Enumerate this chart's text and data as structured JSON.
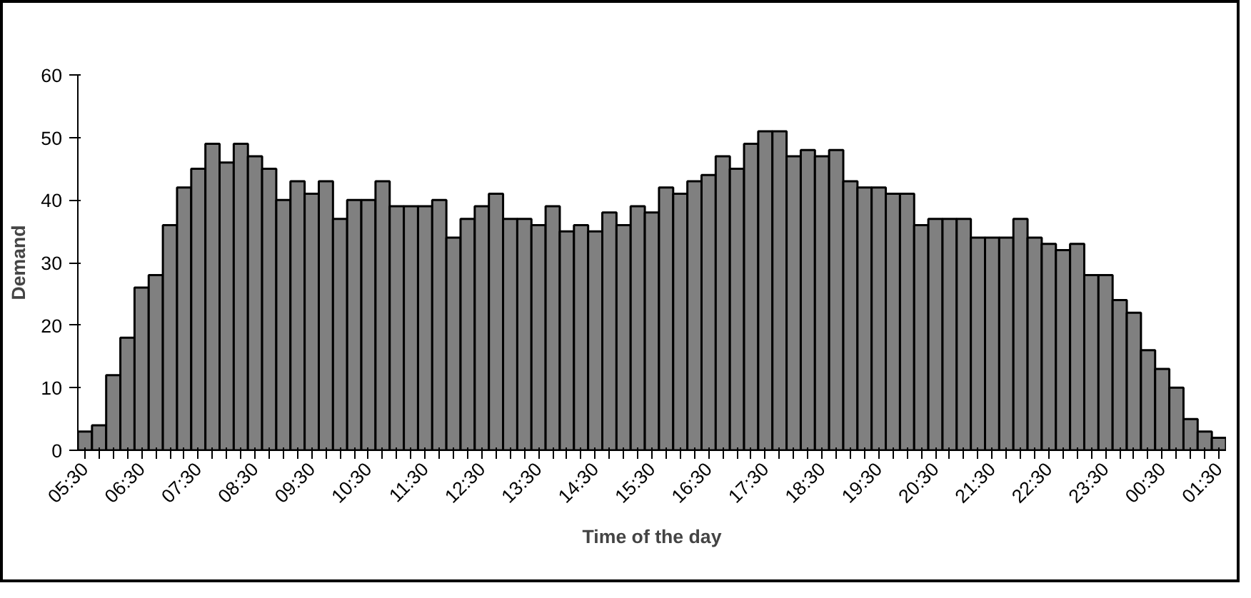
{
  "chart_data": {
    "type": "bar",
    "xlabel": "Time of the day",
    "ylabel": "Demand",
    "categories": [
      "05:30",
      null,
      null,
      null,
      "06:30",
      null,
      null,
      null,
      "07:30",
      null,
      null,
      null,
      "08:30",
      null,
      null,
      null,
      "09:30",
      null,
      null,
      null,
      "10:30",
      null,
      null,
      null,
      "11:30",
      null,
      null,
      null,
      "12:30",
      null,
      null,
      null,
      "13:30",
      null,
      null,
      null,
      "14:30",
      null,
      null,
      null,
      "15:30",
      null,
      null,
      null,
      "16:30",
      null,
      null,
      null,
      "17:30",
      null,
      null,
      null,
      "18:30",
      null,
      null,
      null,
      "19:30",
      null,
      null,
      null,
      "20:30",
      null,
      null,
      null,
      "21:30",
      null,
      null,
      null,
      "22:30",
      null,
      null,
      null,
      "23:30",
      null,
      null,
      null,
      "00:30",
      null,
      null,
      null,
      "01:30"
    ],
    "values": [
      3,
      4,
      12,
      18,
      26,
      28,
      36,
      42,
      45,
      49,
      46,
      49,
      47,
      45,
      40,
      43,
      41,
      43,
      37,
      40,
      40,
      43,
      39,
      39,
      39,
      40,
      34,
      37,
      39,
      41,
      37,
      37,
      36,
      39,
      35,
      36,
      35,
      38,
      36,
      39,
      38,
      42,
      41,
      43,
      44,
      47,
      45,
      49,
      51,
      51,
      47,
      48,
      47,
      48,
      43,
      42,
      42,
      41,
      41,
      36,
      37,
      37,
      37,
      34,
      34,
      34,
      37,
      34,
      33,
      32,
      33,
      28,
      28,
      24,
      22,
      16,
      13,
      10,
      5,
      3,
      2
    ],
    "color": "#808080",
    "ylim": [
      0,
      60
    ],
    "yticks": [
      0,
      10,
      20,
      30,
      40,
      50,
      60
    ],
    "grid": false
  }
}
